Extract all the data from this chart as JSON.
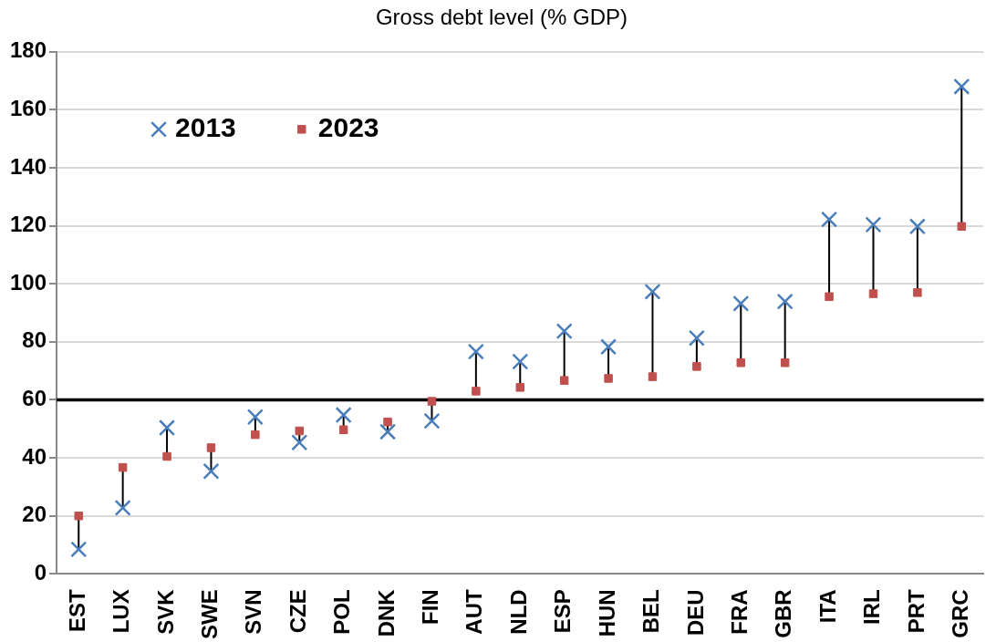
{
  "chart_data": {
    "type": "scatter",
    "title": "Gross debt level (% GDP)",
    "categories": [
      "EST",
      "LUX",
      "SVK",
      "SWE",
      "SVN",
      "CZE",
      "POL",
      "DNK",
      "FIN",
      "AUT",
      "NLD",
      "ESP",
      "HUN",
      "BEL",
      "DEU",
      "FRA",
      "GBR",
      "ITA",
      "IRL",
      "PRT",
      "GRC"
    ],
    "series": [
      {
        "name": "2013",
        "color": "#4a7ebb",
        "marker": "cross",
        "values": [
          8.5,
          22.8,
          50.4,
          35.4,
          54.1,
          45.3,
          54.8,
          49,
          52.7,
          76.6,
          73.2,
          83.7,
          78.3,
          97.3,
          81.3,
          93.2,
          93.9,
          122.2,
          120.4,
          119.8,
          168
        ]
      },
      {
        "name": "2023",
        "color": "#c0504d",
        "marker": "square",
        "values": [
          20,
          36.7,
          40.5,
          43.5,
          48,
          49.3,
          49.7,
          52.4,
          59.5,
          63,
          64.3,
          66.7,
          67.4,
          68,
          71.5,
          72.8,
          72.8,
          95.6,
          96.6,
          97,
          119.8
        ]
      }
    ],
    "ylim": [
      0,
      180
    ],
    "yticks": [
      0,
      20,
      40,
      60,
      80,
      100,
      120,
      140,
      160,
      180
    ],
    "ref_lines": [
      {
        "axis": "y",
        "value": 60,
        "color": "#000000"
      }
    ],
    "grid": "y",
    "legend": "top left"
  }
}
